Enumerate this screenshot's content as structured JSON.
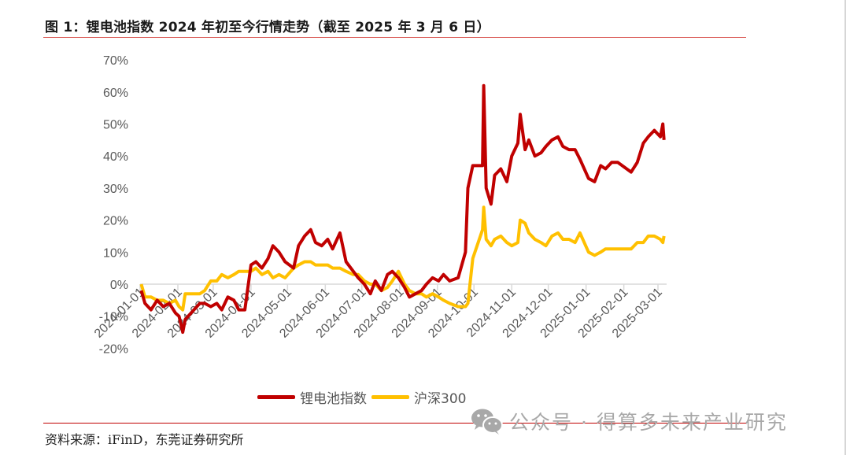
{
  "header": {
    "title": "图 1：锂电池指数 2024 年初至今行情走势（截至 2025 年 3 月 6 日）"
  },
  "footer": {
    "source": "资料来源：iFinD，东莞证券研究所",
    "watermark": "公众号 · 得算多未来产业研究",
    "watermark_icon": "wechat-icon"
  },
  "colors": {
    "series_1": "#c00000",
    "series_2": "#ffc000",
    "rule": "#c00000",
    "axis": "#d9d9d9",
    "tick_text": "#595959"
  },
  "chart_data": {
    "type": "line",
    "title": "锂电池指数 2024 年初至今行情走势（截至 2025 年 3 月 6 日）",
    "xlabel": "",
    "ylabel": "",
    "ylim": [
      -0.2,
      0.7
    ],
    "y_ticks": [
      "70%",
      "60%",
      "50%",
      "40%",
      "30%",
      "20%",
      "10%",
      "0%",
      "-10%",
      "-20%"
    ],
    "x_ticks": [
      "2024-01-01",
      "2024-02-01",
      "2024-03-01",
      "2024-04-01",
      "2024-05-01",
      "2024-06-01",
      "2024-07-01",
      "2024-08-01",
      "2024-09-01",
      "2024-10-01",
      "2024-11-01",
      "2024-12-01",
      "2025-01-01",
      "2025-02-01",
      "2025-03-01"
    ],
    "grid": false,
    "legend_position": "bottom",
    "x": [
      "2024-01-02",
      "2024-01-05",
      "2024-01-10",
      "2024-01-15",
      "2024-01-20",
      "2024-01-25",
      "2024-01-30",
      "2024-02-02",
      "2024-02-05",
      "2024-02-07",
      "2024-02-19",
      "2024-02-23",
      "2024-02-28",
      "2024-03-04",
      "2024-03-08",
      "2024-03-13",
      "2024-03-18",
      "2024-03-22",
      "2024-03-27",
      "2024-04-01",
      "2024-04-05",
      "2024-04-10",
      "2024-04-15",
      "2024-04-19",
      "2024-04-24",
      "2024-04-29",
      "2024-05-06",
      "2024-05-10",
      "2024-05-15",
      "2024-05-20",
      "2024-05-24",
      "2024-05-29",
      "2024-06-03",
      "2024-06-07",
      "2024-06-13",
      "2024-06-18",
      "2024-06-24",
      "2024-06-28",
      "2024-07-03",
      "2024-07-08",
      "2024-07-12",
      "2024-07-17",
      "2024-07-22",
      "2024-07-26",
      "2024-07-31",
      "2024-08-05",
      "2024-08-09",
      "2024-08-14",
      "2024-08-19",
      "2024-08-23",
      "2024-08-28",
      "2024-09-02",
      "2024-09-06",
      "2024-09-11",
      "2024-09-18",
      "2024-09-24",
      "2024-09-26",
      "2024-09-30",
      "2024-10-08",
      "2024-10-09",
      "2024-10-11",
      "2024-10-15",
      "2024-10-18",
      "2024-10-23",
      "2024-10-28",
      "2024-11-01",
      "2024-11-06",
      "2024-11-08",
      "2024-11-12",
      "2024-11-15",
      "2024-11-20",
      "2024-11-25",
      "2024-11-29",
      "2024-12-04",
      "2024-12-09",
      "2024-12-13",
      "2024-12-18",
      "2024-12-23",
      "2024-12-27",
      "2025-01-03",
      "2025-01-08",
      "2025-01-13",
      "2025-01-17",
      "2025-01-22",
      "2025-01-27",
      "2025-02-07",
      "2025-02-12",
      "2025-02-17",
      "2025-02-21",
      "2025-02-26",
      "2025-03-03",
      "2025-03-05",
      "2025-03-06"
    ],
    "series": [
      {
        "name": "锂电池指数",
        "color": "#c00000",
        "values": [
          -0.02,
          -0.06,
          -0.08,
          -0.05,
          -0.07,
          -0.06,
          -0.09,
          -0.1,
          -0.15,
          -0.11,
          -0.06,
          -0.06,
          -0.07,
          -0.06,
          -0.08,
          -0.04,
          -0.05,
          -0.08,
          -0.08,
          0.06,
          0.07,
          0.05,
          0.08,
          0.12,
          0.1,
          0.07,
          0.05,
          0.12,
          0.15,
          0.17,
          0.13,
          0.12,
          0.14,
          0.11,
          0.16,
          0.07,
          0.04,
          0.02,
          0.0,
          -0.03,
          0.01,
          -0.02,
          0.03,
          0.04,
          0.02,
          -0.01,
          -0.04,
          -0.03,
          -0.02,
          0.0,
          0.02,
          0.01,
          0.03,
          0.01,
          0.02,
          0.1,
          0.3,
          0.37,
          0.37,
          0.62,
          0.3,
          0.25,
          0.34,
          0.36,
          0.32,
          0.4,
          0.44,
          0.53,
          0.42,
          0.45,
          0.4,
          0.41,
          0.43,
          0.45,
          0.46,
          0.43,
          0.42,
          0.42,
          0.39,
          0.33,
          0.32,
          0.37,
          0.36,
          0.38,
          0.38,
          0.35,
          0.38,
          0.44,
          0.46,
          0.48,
          0.46,
          0.5,
          0.45
        ]
      },
      {
        "name": "沪深300",
        "color": "#ffc000",
        "values": [
          0.0,
          -0.04,
          -0.04,
          -0.05,
          -0.05,
          -0.06,
          -0.05,
          -0.07,
          -0.08,
          -0.03,
          -0.03,
          -0.02,
          0.01,
          0.01,
          0.03,
          0.02,
          0.03,
          0.04,
          0.04,
          0.04,
          0.05,
          0.03,
          0.04,
          0.02,
          0.03,
          0.02,
          0.05,
          0.06,
          0.07,
          0.07,
          0.06,
          0.06,
          0.06,
          0.05,
          0.05,
          0.04,
          0.03,
          0.03,
          0.01,
          0.0,
          0.0,
          -0.02,
          -0.01,
          0.01,
          0.04,
          0.0,
          -0.02,
          -0.03,
          -0.03,
          -0.04,
          -0.03,
          -0.04,
          -0.05,
          -0.06,
          -0.07,
          -0.07,
          -0.06,
          0.08,
          0.17,
          0.24,
          0.14,
          0.12,
          0.14,
          0.15,
          0.13,
          0.12,
          0.13,
          0.2,
          0.19,
          0.16,
          0.14,
          0.13,
          0.12,
          0.15,
          0.16,
          0.14,
          0.14,
          0.13,
          0.16,
          0.1,
          0.09,
          0.1,
          0.11,
          0.11,
          0.11,
          0.11,
          0.13,
          0.13,
          0.15,
          0.15,
          0.14,
          0.13,
          0.15
        ]
      }
    ]
  },
  "legend": {
    "items": [
      {
        "label": "锂电池指数",
        "color": "#c00000"
      },
      {
        "label": "沪深300",
        "color": "#ffc000"
      }
    ]
  }
}
